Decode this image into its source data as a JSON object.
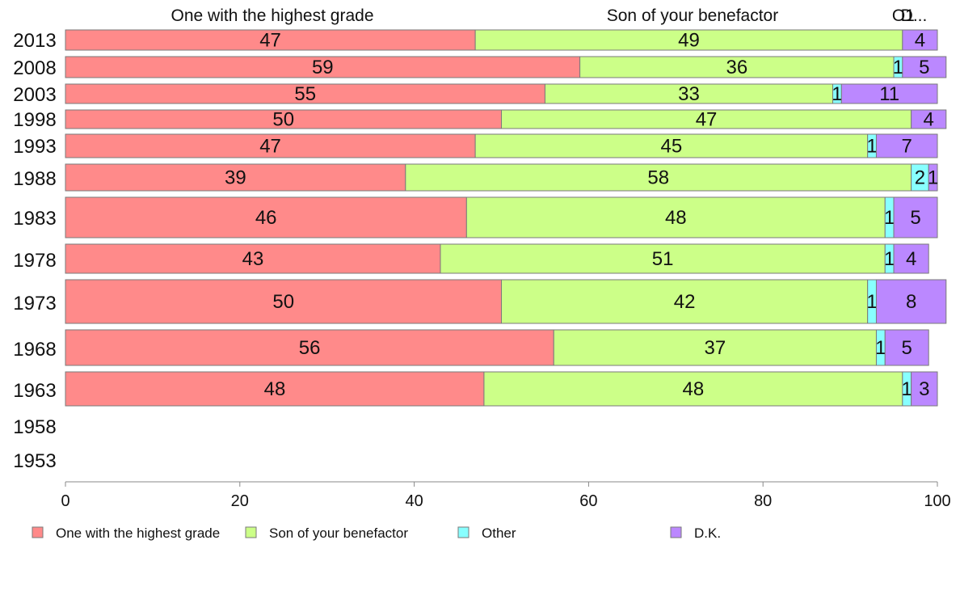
{
  "chart_data": {
    "type": "bar",
    "orientation": "horizontal",
    "stacked": true,
    "xlim": [
      0,
      100
    ],
    "x_ticks": [
      0,
      20,
      40,
      60,
      80,
      100
    ],
    "grid": false,
    "legend_position": "bottom",
    "categories": [
      "2013",
      "2008",
      "2003",
      "1998",
      "1993",
      "1988",
      "1983",
      "1978",
      "1973",
      "1968",
      "1963",
      "1958",
      "1953"
    ],
    "series": [
      {
        "name": "One with the highest grade",
        "color": "#FF8A8A",
        "values": [
          47,
          59,
          55,
          50,
          47,
          39,
          46,
          43,
          50,
          56,
          48,
          null,
          null
        ]
      },
      {
        "name": "Son of your benefactor",
        "color": "#CCFF88",
        "values": [
          49,
          36,
          33,
          47,
          45,
          58,
          48,
          51,
          42,
          37,
          48,
          null,
          null
        ]
      },
      {
        "name": "Other",
        "color": "#88FFFF",
        "values": [
          0,
          1,
          1,
          0,
          1,
          2,
          1,
          1,
          1,
          1,
          1,
          null,
          null
        ]
      },
      {
        "name": "D.K.",
        "color": "#BB88FF",
        "values": [
          4,
          5,
          11,
          4,
          7,
          1,
          5,
          4,
          8,
          5,
          3,
          null,
          null
        ]
      }
    ],
    "top_labels": [
      "One with the highest grade",
      "Son of your benefactor",
      "O",
      "1",
      "D..."
    ]
  }
}
